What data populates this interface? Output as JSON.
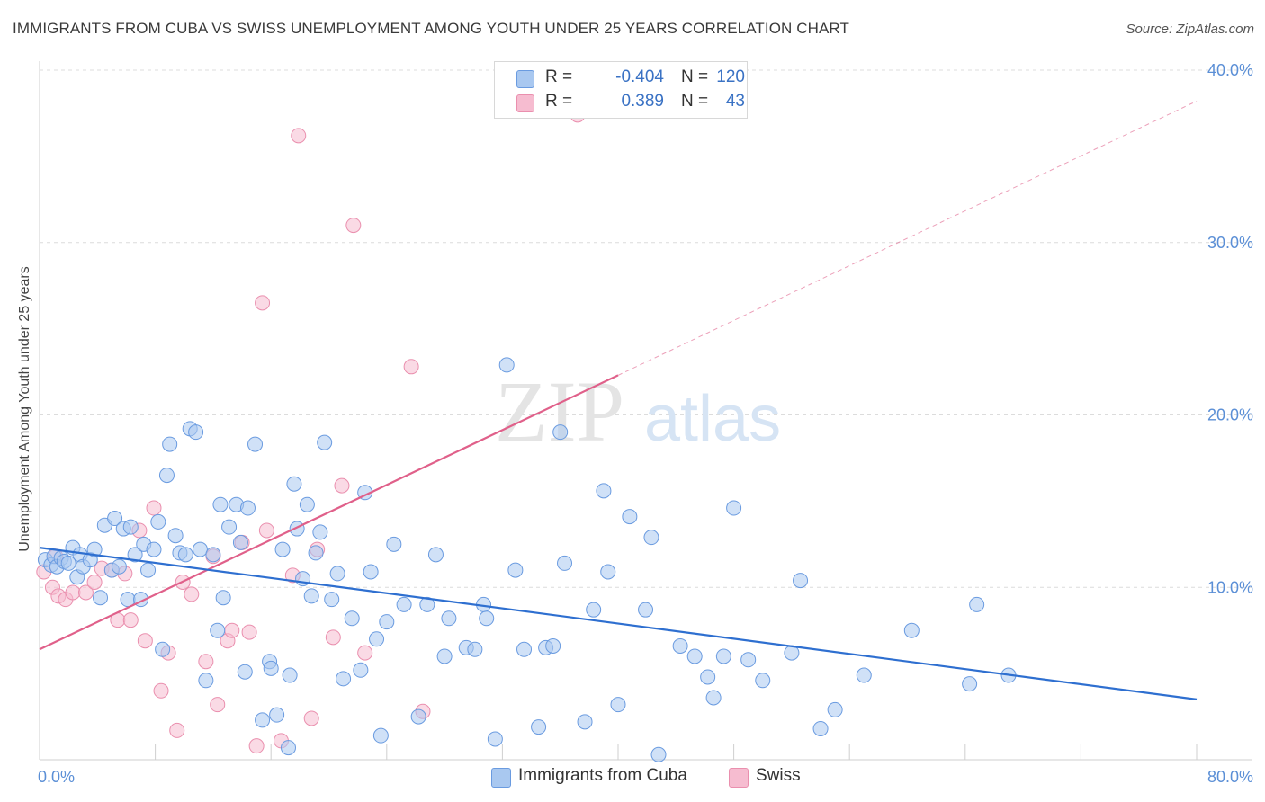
{
  "header": {
    "title": "IMMIGRANTS FROM CUBA VS SWISS UNEMPLOYMENT AMONG YOUTH UNDER 25 YEARS CORRELATION CHART",
    "source": "Source: ZipAtlas.com"
  },
  "watermark": {
    "zip": "ZIP",
    "atlas": "atlas"
  },
  "legend": {
    "rows": [
      {
        "label": "R =",
        "r": "-0.404",
        "n_label": "N =",
        "n": "120"
      },
      {
        "label": "R =",
        "r": "0.389",
        "n_label": "N =",
        "n": "43"
      }
    ]
  },
  "bottom_legend": {
    "cuba": "Immigrants from Cuba",
    "swiss": "Swiss"
  },
  "chart_data": {
    "type": "scatter",
    "ylabel": "Unemployment Among Youth under 25 years",
    "xlim": [
      0,
      80
    ],
    "ylim": [
      0,
      40
    ],
    "x_tick_labels": {
      "0": "0.0%",
      "80": "80.0%"
    },
    "y_tick_labels": {
      "10": "10.0%",
      "20": "20.0%",
      "30": "30.0%",
      "40": "40.0%"
    },
    "gridlines": "horizontal dashed",
    "legend_position": "top-center",
    "colors": {
      "cuba_fill": "#a9c8f0",
      "cuba_stroke": "#6a9be0",
      "cuba_line": "#2e6fd0",
      "swiss_fill": "#f6bcd0",
      "swiss_stroke": "#ea8fae",
      "swiss_line": "#e0608a"
    },
    "series": [
      {
        "name": "Immigrants from Cuba",
        "trend": {
          "x": [
            0,
            80
          ],
          "y": [
            12.3,
            3.5
          ],
          "style": "solid"
        },
        "points": [
          [
            0.4,
            11.6
          ],
          [
            0.8,
            11.3
          ],
          [
            1.0,
            11.8
          ],
          [
            1.2,
            11.2
          ],
          [
            1.5,
            11.7
          ],
          [
            1.7,
            11.5
          ],
          [
            2.0,
            11.4
          ],
          [
            2.3,
            12.3
          ],
          [
            2.6,
            10.6
          ],
          [
            2.8,
            11.9
          ],
          [
            3.0,
            11.2
          ],
          [
            3.5,
            11.6
          ],
          [
            3.8,
            12.2
          ],
          [
            4.2,
            9.4
          ],
          [
            4.5,
            13.6
          ],
          [
            5.0,
            11.0
          ],
          [
            5.2,
            14.0
          ],
          [
            5.5,
            11.2
          ],
          [
            5.8,
            13.4
          ],
          [
            6.1,
            9.3
          ],
          [
            6.3,
            13.5
          ],
          [
            6.6,
            11.9
          ],
          [
            7.0,
            9.3
          ],
          [
            7.2,
            12.5
          ],
          [
            7.5,
            11.0
          ],
          [
            7.9,
            12.2
          ],
          [
            8.2,
            13.8
          ],
          [
            8.5,
            6.4
          ],
          [
            8.8,
            16.5
          ],
          [
            9.0,
            18.3
          ],
          [
            9.4,
            13.0
          ],
          [
            9.7,
            12.0
          ],
          [
            10.1,
            11.9
          ],
          [
            10.4,
            19.2
          ],
          [
            10.8,
            19.0
          ],
          [
            11.1,
            12.2
          ],
          [
            11.5,
            4.6
          ],
          [
            12.0,
            11.9
          ],
          [
            12.3,
            7.5
          ],
          [
            12.5,
            14.8
          ],
          [
            12.7,
            9.4
          ],
          [
            13.1,
            13.5
          ],
          [
            13.6,
            14.8
          ],
          [
            13.9,
            12.6
          ],
          [
            14.2,
            5.1
          ],
          [
            14.4,
            14.6
          ],
          [
            14.9,
            18.3
          ],
          [
            15.4,
            2.3
          ],
          [
            15.9,
            5.7
          ],
          [
            16.0,
            5.3
          ],
          [
            16.4,
            2.6
          ],
          [
            16.8,
            12.2
          ],
          [
            17.2,
            0.7
          ],
          [
            17.3,
            4.9
          ],
          [
            17.6,
            16.0
          ],
          [
            17.8,
            13.4
          ],
          [
            18.2,
            10.5
          ],
          [
            18.5,
            14.8
          ],
          [
            18.8,
            9.5
          ],
          [
            19.1,
            12.0
          ],
          [
            19.4,
            13.2
          ],
          [
            19.7,
            18.4
          ],
          [
            20.2,
            9.3
          ],
          [
            20.6,
            10.8
          ],
          [
            21.0,
            4.7
          ],
          [
            21.6,
            8.2
          ],
          [
            22.2,
            5.2
          ],
          [
            22.5,
            15.5
          ],
          [
            22.9,
            10.9
          ],
          [
            23.3,
            7.0
          ],
          [
            23.6,
            1.4
          ],
          [
            24.0,
            8.0
          ],
          [
            24.5,
            12.5
          ],
          [
            25.2,
            9.0
          ],
          [
            26.2,
            2.5
          ],
          [
            26.8,
            9.0
          ],
          [
            27.4,
            11.9
          ],
          [
            28.0,
            6.0
          ],
          [
            28.3,
            8.2
          ],
          [
            29.5,
            6.5
          ],
          [
            30.1,
            6.4
          ],
          [
            30.7,
            9.0
          ],
          [
            30.9,
            8.2
          ],
          [
            31.5,
            1.2
          ],
          [
            32.3,
            22.9
          ],
          [
            32.9,
            11.0
          ],
          [
            33.5,
            6.4
          ],
          [
            34.5,
            1.9
          ],
          [
            35.0,
            6.5
          ],
          [
            35.5,
            6.6
          ],
          [
            36.0,
            19.0
          ],
          [
            36.3,
            11.4
          ],
          [
            37.7,
            2.2
          ],
          [
            38.3,
            8.7
          ],
          [
            39.0,
            15.6
          ],
          [
            39.3,
            10.9
          ],
          [
            40.0,
            3.2
          ],
          [
            40.8,
            14.1
          ],
          [
            41.9,
            8.7
          ],
          [
            42.3,
            12.9
          ],
          [
            42.8,
            0.3
          ],
          [
            44.3,
            6.6
          ],
          [
            45.3,
            6.0
          ],
          [
            46.2,
            4.8
          ],
          [
            46.6,
            3.6
          ],
          [
            47.3,
            6.0
          ],
          [
            48.0,
            14.6
          ],
          [
            49.0,
            5.8
          ],
          [
            50.0,
            4.6
          ],
          [
            52.0,
            6.2
          ],
          [
            52.6,
            10.4
          ],
          [
            54.0,
            1.8
          ],
          [
            55.0,
            2.9
          ],
          [
            57.0,
            4.9
          ],
          [
            60.3,
            7.5
          ],
          [
            64.3,
            4.4
          ],
          [
            64.8,
            9.0
          ],
          [
            67.0,
            4.9
          ]
        ]
      },
      {
        "name": "Swiss",
        "trend": {
          "x": [
            0,
            40
          ],
          "y": [
            6.4,
            22.3
          ],
          "extended": {
            "x": [
              40,
              80
            ],
            "y": [
              22.3,
              38.2
            ]
          }
        },
        "points": [
          [
            0.3,
            10.9
          ],
          [
            0.9,
            10.0
          ],
          [
            1.1,
            11.8
          ],
          [
            1.3,
            9.5
          ],
          [
            1.8,
            9.3
          ],
          [
            2.3,
            9.7
          ],
          [
            3.2,
            9.7
          ],
          [
            3.8,
            10.3
          ],
          [
            4.3,
            11.1
          ],
          [
            5.0,
            11.0
          ],
          [
            5.4,
            8.1
          ],
          [
            5.9,
            10.8
          ],
          [
            6.3,
            8.1
          ],
          [
            6.9,
            13.3
          ],
          [
            7.3,
            6.9
          ],
          [
            7.9,
            14.6
          ],
          [
            8.4,
            4.0
          ],
          [
            8.9,
            6.2
          ],
          [
            9.5,
            1.7
          ],
          [
            9.9,
            10.3
          ],
          [
            10.5,
            9.6
          ],
          [
            11.5,
            5.7
          ],
          [
            12.0,
            11.8
          ],
          [
            12.3,
            3.2
          ],
          [
            13.0,
            6.9
          ],
          [
            13.3,
            7.5
          ],
          [
            14.0,
            12.6
          ],
          [
            14.5,
            7.4
          ],
          [
            15.0,
            0.8
          ],
          [
            15.4,
            26.5
          ],
          [
            15.7,
            13.3
          ],
          [
            16.7,
            1.1
          ],
          [
            17.5,
            10.7
          ],
          [
            17.9,
            36.2
          ],
          [
            18.8,
            2.4
          ],
          [
            19.2,
            12.2
          ],
          [
            20.3,
            7.1
          ],
          [
            20.9,
            15.9
          ],
          [
            21.7,
            31.0
          ],
          [
            22.5,
            6.2
          ],
          [
            25.7,
            22.8
          ],
          [
            26.5,
            2.8
          ],
          [
            37.2,
            37.4
          ]
        ]
      }
    ]
  }
}
